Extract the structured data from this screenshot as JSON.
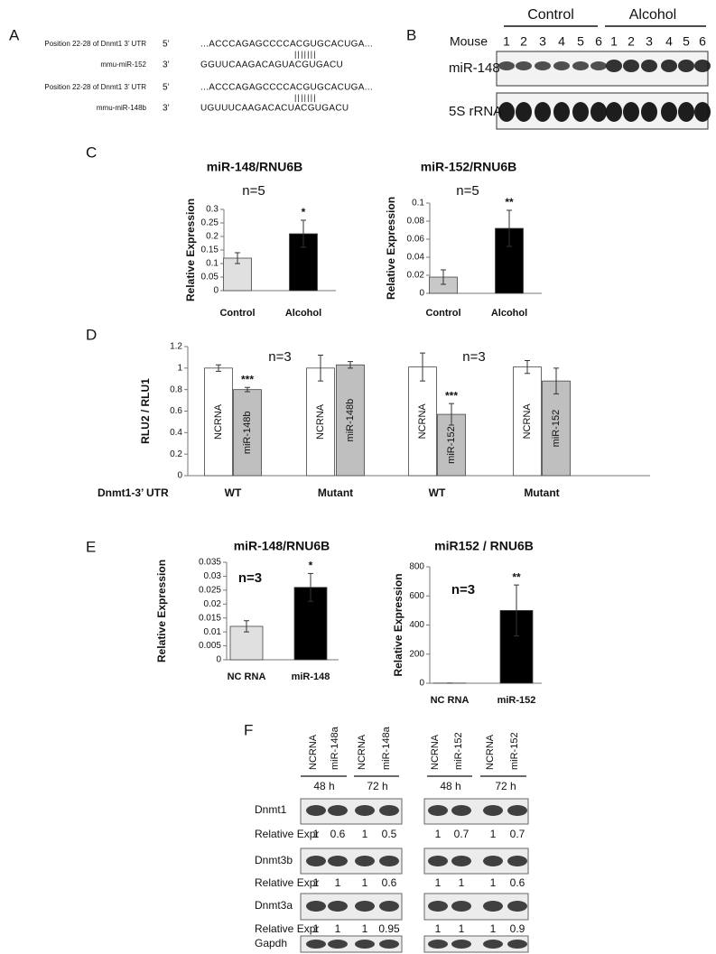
{
  "panel_labels": [
    "A",
    "B",
    "C",
    "D",
    "E",
    "F"
  ],
  "panel_a": {
    "rows": [
      {
        "label": "Position 22-28 of Dnmt1 3’ UTR",
        "end": "5’",
        "sequence": "...ACCCAGAGCCCCACGUGCACUGA..."
      },
      {
        "label": "mmu-miR-152",
        "end": "3’",
        "sequence": "GGUUCAAGACAGUACGUGACU"
      },
      {
        "label": "Position 22-28 of Dnmt1 3’ UTR",
        "end": "5’",
        "sequence": "...ACCCAGAGCCCCACGUGCACUGA..."
      },
      {
        "label": "mmu-miR-148b",
        "end": "3’",
        "sequence": "UGUUUCAAGACACUACGUGACU"
      }
    ],
    "pairing": "|||||||"
  },
  "panel_b": {
    "groups": [
      "Control",
      "Alcohol"
    ],
    "header": "Mouse",
    "lanes": [
      "1",
      "2",
      "3",
      "4",
      "5",
      "6",
      "1",
      "2",
      "3",
      "4",
      "5",
      "6"
    ],
    "rows": [
      "miR-148",
      "5S rRNA"
    ]
  },
  "chart_data": [
    {
      "type": "bar",
      "title": "miR-148/RNU6B",
      "annotations": [
        "n=5"
      ],
      "y_label": "Relative Expression",
      "categories": [
        "Control",
        "Alcohol"
      ],
      "values": [
        0.12,
        0.21
      ],
      "errors": [
        0.02,
        0.05
      ],
      "significance": [
        null,
        "*"
      ],
      "colors": [
        "#e0e0e0",
        "#000000"
      ],
      "ylim": [
        0,
        0.3
      ],
      "yticks": [
        0,
        0.05,
        0.1,
        0.15,
        0.2,
        0.25,
        0.3
      ]
    },
    {
      "type": "bar",
      "title": "miR-152/RNU6B",
      "annotations": [
        "n=5"
      ],
      "y_label": "Relative Expression",
      "categories": [
        "Control",
        "Alcohol"
      ],
      "values": [
        0.018,
        0.072
      ],
      "errors": [
        0.008,
        0.02
      ],
      "significance": [
        null,
        "**"
      ],
      "colors": [
        "#c8c8c8",
        "#000000"
      ],
      "ylim": [
        0,
        0.1
      ],
      "yticks": [
        0,
        0.02,
        0.04,
        0.06,
        0.08,
        0.1
      ]
    },
    {
      "type": "bar",
      "annotations": [
        "n=3",
        "n=3"
      ],
      "y_label": "RLU2 / RLU1",
      "x_label": "Dnmt1-3’ UTR",
      "groups": [
        "WT",
        "Mutant",
        "WT",
        "Mutant"
      ],
      "categories": [
        "NCRNA",
        "miR-148b",
        "NCRNA",
        "miR-148b",
        "NCRNA",
        "miR-152",
        "NCRNA",
        "miR-152"
      ],
      "values": [
        1.0,
        0.8,
        1.0,
        1.03,
        1.01,
        0.57,
        1.01,
        0.88
      ],
      "errors": [
        0.03,
        0.02,
        0.12,
        0.03,
        0.13,
        0.1,
        0.06,
        0.12
      ],
      "significance": [
        null,
        "***",
        null,
        null,
        null,
        "***",
        null,
        null
      ],
      "colors": [
        "#ffffff",
        "#bfbfbf",
        "#ffffff",
        "#bfbfbf",
        "#ffffff",
        "#bfbfbf",
        "#ffffff",
        "#bfbfbf"
      ],
      "ylim": [
        0,
        1.2
      ],
      "yticks": [
        0,
        0.2,
        0.4,
        0.6,
        0.8,
        1,
        1.2
      ]
    },
    {
      "type": "bar",
      "title": "miR-148/RNU6B",
      "annotations": [
        "n=3"
      ],
      "y_label": "Relative Expression",
      "categories": [
        "NC RNA",
        "miR-148"
      ],
      "values": [
        0.012,
        0.026
      ],
      "errors": [
        0.002,
        0.005
      ],
      "significance": [
        null,
        "*"
      ],
      "colors": [
        "#e0e0e0",
        "#000000"
      ],
      "ylim": [
        0,
        0.035
      ],
      "yticks": [
        0,
        0.005,
        0.01,
        0.015,
        0.02,
        0.025,
        0.03,
        0.035
      ]
    },
    {
      "type": "bar",
      "title": "miR152 / RNU6B",
      "annotations": [
        "n=3"
      ],
      "y_label": "Relative Expression",
      "categories": [
        "NC RNA",
        "miR-152"
      ],
      "values": [
        1,
        500
      ],
      "errors": [
        0,
        175
      ],
      "significance": [
        null,
        "**"
      ],
      "colors": [
        "#e0e0e0",
        "#000000"
      ],
      "ylim": [
        0,
        800
      ],
      "yticks": [
        0,
        200,
        400,
        600,
        800
      ]
    }
  ],
  "panel_f": {
    "rows": [
      "Dnmt1",
      "Dnmt3b",
      "Dnmt3a",
      "Gapdh"
    ],
    "expr_label": "Relative Expr",
    "blots": [
      {
        "lanes": [
          "NCRNA",
          "miR-148a",
          "NCRNA",
          "miR-148a"
        ],
        "times": [
          "48 h",
          "72 h"
        ],
        "relative_expr": [
          [
            1,
            0.6,
            1,
            0.5
          ],
          [
            1,
            1,
            1,
            0.6
          ],
          [
            1,
            1,
            1,
            0.95
          ]
        ]
      },
      {
        "lanes": [
          "NCRNA",
          "miR-152",
          "NCRNA",
          "miR-152"
        ],
        "times": [
          "48 h",
          "72 h"
        ],
        "relative_expr": [
          [
            1,
            0.7,
            1,
            0.7
          ],
          [
            1,
            1,
            1,
            0.6
          ],
          [
            1,
            1,
            1,
            0.9
          ]
        ]
      }
    ]
  }
}
